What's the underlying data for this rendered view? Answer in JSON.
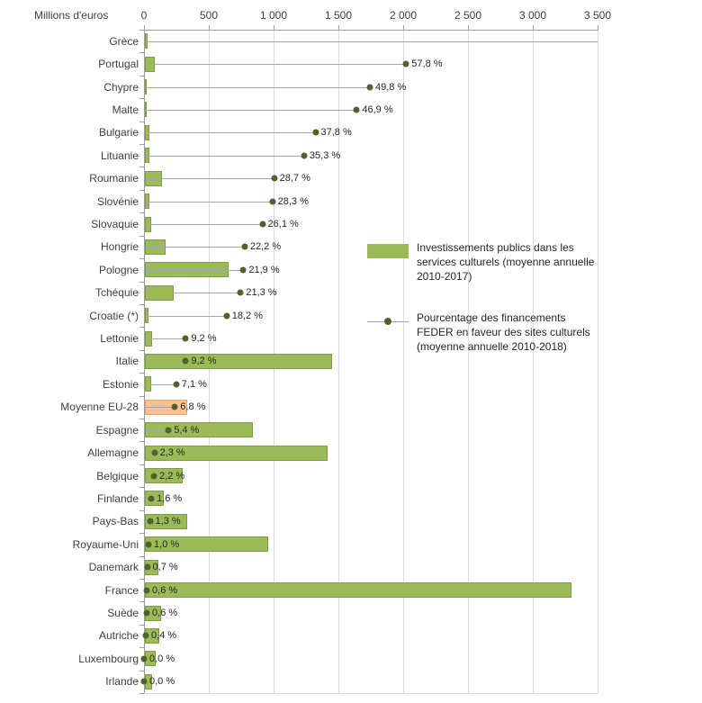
{
  "chart_data": {
    "type": "bar",
    "orientation": "horizontal",
    "unit_label": "Millions d'euros",
    "x_axis": {
      "min": 0,
      "max": 3500,
      "ticks": [
        "0",
        "500",
        "1 000",
        "1 500",
        "2 000",
        "2 500",
        "3 000",
        "3 500"
      ],
      "tick_values": [
        0,
        500,
        1000,
        1500,
        2000,
        2500,
        3000,
        3500
      ]
    },
    "grid": true,
    "categories": [
      "Grèce",
      "Portugal",
      "Chypre",
      "Malte",
      "Bulgarie",
      "Lituanie",
      "Roumanie",
      "Slovénie",
      "Slovaquie",
      "Hongrie",
      "Pologne",
      "Tchéquie",
      "Croatie (*)",
      "Lettonie",
      "Italie",
      "Estonie",
      "Moyenne EU-28",
      "Espagne",
      "Allemagne",
      "Belgique",
      "Finlande",
      "Pays-Bas",
      "Royaume-Uni",
      "Danemark",
      "France",
      "Suède",
      "Autriche",
      "Luxembourg",
      "Irlande"
    ],
    "series": [
      {
        "name": "Investissements publics dans les services culturels (moyenne annuelle 2010-2017)",
        "type": "bar",
        "color": "#9bbb59",
        "unit": "millions d'euros",
        "values": [
          30,
          85,
          20,
          12,
          40,
          45,
          140,
          45,
          55,
          165,
          650,
          230,
          35,
          60,
          1450,
          55,
          330,
          840,
          1420,
          300,
          150,
          330,
          960,
          110,
          3300,
          130,
          120,
          90,
          65
        ]
      },
      {
        "name": "Pourcentage des financements FEDER en faveur des sites culturels (moyenne annuelle 2010-2018)",
        "type": "lollipop",
        "color": "#4f6228",
        "line_color": "#a6a6a6",
        "unit": "%",
        "pct_scale_max": 100,
        "values": [
          null,
          57.8,
          49.8,
          46.9,
          37.8,
          35.3,
          28.7,
          28.3,
          26.1,
          22.2,
          21.9,
          21.3,
          18.2,
          9.2,
          9.2,
          7.1,
          6.8,
          5.4,
          2.3,
          2.2,
          1.6,
          1.3,
          1.0,
          0.7,
          0.6,
          0.6,
          0.4,
          0.0,
          0.0
        ],
        "labels": [
          "",
          "57,8 %",
          "49,8 %",
          "46,9 %",
          "37,8 %",
          "35,3 %",
          "28,7 %",
          "28,3 %",
          "26,1 %",
          "22,2 %",
          "21,9 %",
          "21,3 %",
          "18,2 %",
          "9,2 %",
          "9,2 %",
          "7,1 %",
          "6,8 %",
          "5,4 %",
          "2,3 %",
          "2,2 %",
          "1,6 %",
          "1,3 %",
          "1,0 %",
          "0,7 %",
          "0,6 %",
          "0,6 %",
          "0,4 %",
          "0,0 %",
          "0,0 %"
        ]
      }
    ],
    "highlight": {
      "category": "Moyenne EU-28",
      "bar_color": "#fac08f"
    }
  },
  "legend": {
    "items": [
      {
        "swatch": "bar",
        "color": "#9bbb59",
        "label": "Investissements publics dans les services culturels (moyenne annuelle 2010-2017)"
      },
      {
        "swatch": "line-dot",
        "color": "#4f6228",
        "label": "Pourcentage des financements FEDER en faveur des sites culturels (moyenne annuelle 2010-2018)"
      }
    ]
  }
}
